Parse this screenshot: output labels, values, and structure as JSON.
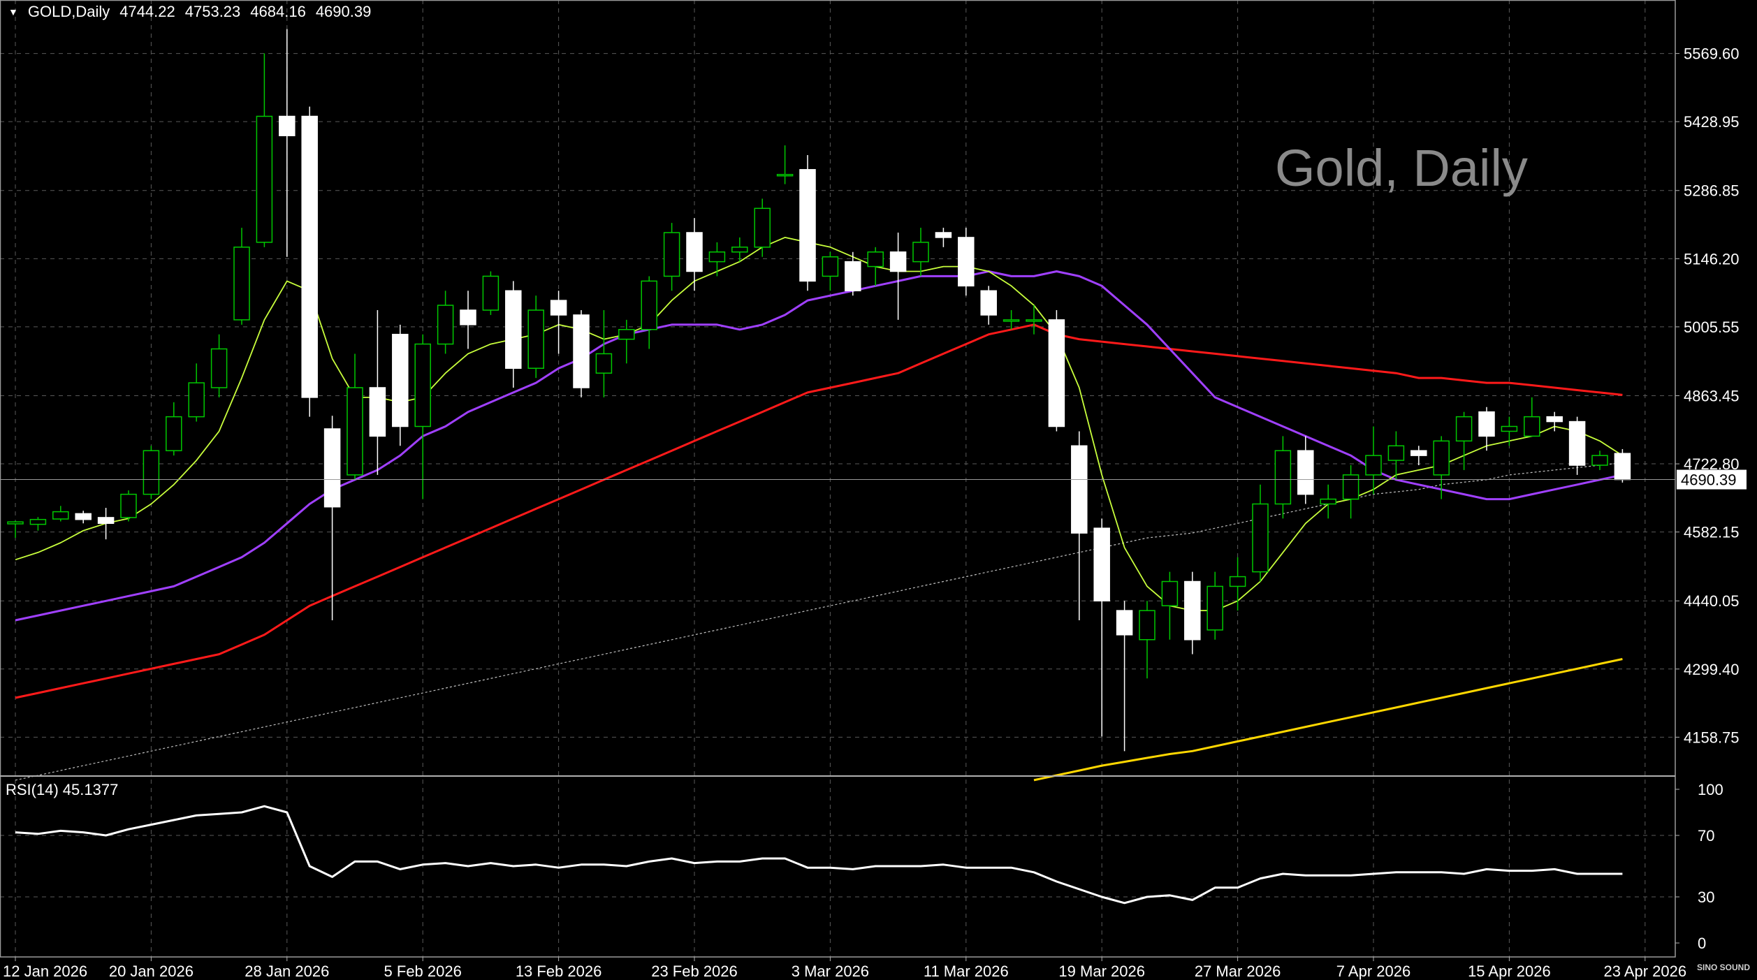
{
  "header": {
    "symbol": "GOLD,Daily",
    "open": "4744.22",
    "high": "4753.23",
    "low": "4684.16",
    "close": "4690.39"
  },
  "watermark": "Gold, Daily",
  "logo": "SINO SOUND",
  "rsi": {
    "label": "RSI(14)",
    "value": "45.1377"
  },
  "colors": {
    "background": "#000000",
    "grid": "#5a5a5a",
    "bull_candle": "#00c800",
    "bear_candle": "#ffffff",
    "ma_fast": "#c8ff3c",
    "ma_mid": "#a040ff",
    "ma_slow": "#ff1a1a",
    "ma_long": "#c0c0c0",
    "ma_yellow": "#ffd700",
    "rsi_line": "#ffffff"
  },
  "chart_data": [
    {
      "type": "candlestick",
      "y_ticks": [
        "5569.60",
        "5428.95",
        "5286.85",
        "5146.20",
        "5005.55",
        "4863.45",
        "4722.80",
        "4582.15",
        "4440.05",
        "4299.40",
        "4158.75"
      ],
      "ylim": [
        4080,
        5680
      ],
      "current_price_label": "4690.39",
      "x_tick_labels": [
        "12 Jan 2026",
        "20 Jan 2026",
        "28 Jan 2026",
        "5 Feb 2026",
        "13 Feb 2026",
        "23 Feb 2026",
        "3 Mar 2026",
        "11 Mar 2026",
        "19 Mar 2026",
        "27 Mar 2026",
        "7 Apr 2026",
        "15 Apr 2026",
        "23 Apr 2026"
      ],
      "x_tick_bars": [
        0,
        6,
        12,
        18,
        24,
        30,
        36,
        42,
        48,
        54,
        60,
        66,
        72
      ],
      "candles": [
        [
          4599,
          4603,
          4570,
          4605
        ],
        [
          4598,
          4608,
          4585,
          4613
        ],
        [
          4609,
          4624,
          4604,
          4636
        ],
        [
          4620,
          4608,
          4600,
          4626
        ],
        [
          4612,
          4600,
          4567,
          4632
        ],
        [
          4612,
          4660,
          4604,
          4668
        ],
        [
          4660,
          4750,
          4650,
          4760
        ],
        [
          4750,
          4820,
          4740,
          4850
        ],
        [
          4820,
          4890,
          4810,
          4930
        ],
        [
          4880,
          4960,
          4860,
          4990
        ],
        [
          5020,
          5170,
          5010,
          5210
        ],
        [
          5180,
          5440,
          5170,
          5570
        ],
        [
          5440,
          5400,
          5150,
          5620
        ],
        [
          5440,
          4860,
          4820,
          5460
        ],
        [
          4795,
          4634,
          4400,
          4822
        ],
        [
          4700,
          4880,
          4690,
          4950
        ],
        [
          4880,
          4780,
          4700,
          5040
        ],
        [
          4990,
          4800,
          4760,
          5010
        ],
        [
          4800,
          4970,
          4650,
          4990
        ],
        [
          4970,
          5050,
          4950,
          5080
        ],
        [
          5040,
          5010,
          4960,
          5080
        ],
        [
          5040,
          5110,
          5030,
          5120
        ],
        [
          5080,
          4920,
          4880,
          5100
        ],
        [
          4920,
          5040,
          4900,
          5070
        ],
        [
          5060,
          5030,
          4950,
          5080
        ],
        [
          5030,
          4880,
          4860,
          5040
        ],
        [
          4910,
          4950,
          4860,
          5040
        ],
        [
          4980,
          5000,
          4930,
          5020
        ],
        [
          5000,
          5100,
          4960,
          5110
        ],
        [
          5110,
          5200,
          5080,
          5220
        ],
        [
          5200,
          5120,
          5080,
          5230
        ],
        [
          5140,
          5160,
          5110,
          5180
        ],
        [
          5160,
          5170,
          5140,
          5190
        ],
        [
          5170,
          5250,
          5150,
          5270
        ],
        [
          5320,
          5320,
          5300,
          5380
        ],
        [
          5330,
          5100,
          5080,
          5360
        ],
        [
          5110,
          5150,
          5080,
          5160
        ],
        [
          5140,
          5080,
          5070,
          5160
        ],
        [
          5130,
          5160,
          5090,
          5170
        ],
        [
          5160,
          5120,
          5020,
          5200
        ],
        [
          5140,
          5180,
          5110,
          5210
        ],
        [
          5200,
          5190,
          5170,
          5210
        ],
        [
          5190,
          5090,
          5070,
          5210
        ],
        [
          5080,
          5030,
          5010,
          5090
        ],
        [
          5020,
          5020,
          5000,
          5040
        ],
        [
          5020,
          5020,
          4990,
          5050
        ],
        [
          5020,
          4800,
          4790,
          5040
        ],
        [
          4760,
          4580,
          4400,
          4790
        ],
        [
          4590,
          4440,
          4160,
          4610
        ],
        [
          4420,
          4370,
          4130,
          4440
        ],
        [
          4360,
          4420,
          4280,
          4440
        ],
        [
          4430,
          4480,
          4360,
          4500
        ],
        [
          4480,
          4360,
          4330,
          4500
        ],
        [
          4380,
          4470,
          4360,
          4500
        ],
        [
          4470,
          4490,
          4420,
          4530
        ],
        [
          4500,
          4640,
          4480,
          4680
        ],
        [
          4640,
          4750,
          4610,
          4780
        ],
        [
          4750,
          4660,
          4640,
          4780
        ],
        [
          4640,
          4650,
          4610,
          4680
        ],
        [
          4650,
          4700,
          4610,
          4720
        ],
        [
          4700,
          4740,
          4660,
          4800
        ],
        [
          4730,
          4760,
          4690,
          4790
        ],
        [
          4750,
          4740,
          4720,
          4760
        ],
        [
          4700,
          4770,
          4650,
          4780
        ],
        [
          4770,
          4820,
          4710,
          4830
        ],
        [
          4830,
          4780,
          4750,
          4840
        ],
        [
          4790,
          4800,
          4760,
          4820
        ],
        [
          4780,
          4820,
          4780,
          4860
        ],
        [
          4820,
          4810,
          4790,
          4830
        ],
        [
          4810,
          4720,
          4700,
          4820
        ],
        [
          4720,
          4740,
          4710,
          4750
        ],
        [
          4744.22,
          4690.39,
          4684.16,
          4753.23
        ]
      ],
      "ma_fast": [
        4525,
        4540,
        4560,
        4585,
        4600,
        4610,
        4640,
        4680,
        4730,
        4790,
        4900,
        5020,
        5100,
        5080,
        4940,
        4860,
        4860,
        4850,
        4860,
        4910,
        4950,
        4970,
        4980,
        4990,
        5010,
        5000,
        4980,
        4990,
        5010,
        5060,
        5100,
        5120,
        5140,
        5170,
        5190,
        5180,
        5170,
        5150,
        5130,
        5120,
        5120,
        5130,
        5130,
        5120,
        5090,
        5050,
        4990,
        4880,
        4700,
        4550,
        4470,
        4430,
        4420,
        4420,
        4440,
        4480,
        4540,
        4600,
        4640,
        4650,
        4670,
        4700,
        4710,
        4720,
        4740,
        4760,
        4770,
        4780,
        4800,
        4790,
        4770,
        4740
      ],
      "ma_mid": [
        4400,
        4410,
        4420,
        4430,
        4440,
        4450,
        4460,
        4470,
        4490,
        4510,
        4530,
        4560,
        4600,
        4640,
        4670,
        4690,
        4710,
        4740,
        4780,
        4800,
        4830,
        4850,
        4870,
        4890,
        4920,
        4940,
        4970,
        4990,
        5000,
        5010,
        5010,
        5010,
        5000,
        5010,
        5030,
        5060,
        5070,
        5080,
        5090,
        5100,
        5110,
        5110,
        5110,
        5120,
        5110,
        5110,
        5120,
        5110,
        5090,
        5050,
        5010,
        4960,
        4910,
        4860,
        4840,
        4820,
        4800,
        4780,
        4760,
        4740,
        4710,
        4690,
        4680,
        4670,
        4660,
        4650,
        4650,
        4660,
        4670,
        4680,
        4690,
        4700
      ],
      "ma_slow": [
        4240,
        4250,
        4260,
        4270,
        4280,
        4290,
        4300,
        4310,
        4320,
        4330,
        4350,
        4370,
        4400,
        4430,
        4450,
        4470,
        4490,
        4510,
        4530,
        4550,
        4570,
        4590,
        4610,
        4630,
        4650,
        4670,
        4690,
        4710,
        4730,
        4750,
        4770,
        4790,
        4810,
        4830,
        4850,
        4870,
        4880,
        4890,
        4900,
        4910,
        4930,
        4950,
        4970,
        4990,
        5000,
        5010,
        4990,
        4980,
        4975,
        4970,
        4965,
        4960,
        4955,
        4950,
        4945,
        4940,
        4935,
        4930,
        4925,
        4920,
        4915,
        4910,
        4900,
        4900,
        4895,
        4890,
        4890,
        4885,
        4880,
        4875,
        4870,
        4865
      ],
      "ma_long": [
        4070,
        4080,
        4090,
        4100,
        4110,
        4120,
        4130,
        4140,
        4150,
        4160,
        4170,
        4180,
        4190,
        4200,
        4210,
        4220,
        4230,
        4240,
        4250,
        4260,
        4270,
        4280,
        4290,
        4300,
        4310,
        4320,
        4330,
        4340,
        4350,
        4360,
        4370,
        4380,
        4390,
        4400,
        4410,
        4420,
        4430,
        4440,
        4450,
        4460,
        4470,
        4480,
        4490,
        4500,
        4510,
        4520,
        4530,
        4540,
        4550,
        4560,
        4570,
        4575,
        4580,
        4590,
        4600,
        4610,
        4620,
        4630,
        4640,
        4650,
        4660,
        4665,
        4670,
        4680,
        4685,
        4690,
        4700,
        4705,
        4710,
        4715,
        4720,
        4725
      ],
      "ma_yellow_start_index": 45,
      "ma_yellow": [
        4070,
        4080,
        4090,
        4100,
        4108,
        4116,
        4124,
        4130,
        4140,
        4150,
        4160,
        4170,
        4180,
        4190,
        4200,
        4210,
        4220,
        4230,
        4240,
        4250,
        4260,
        4270,
        4280,
        4290,
        4300,
        4310,
        4320
      ]
    },
    {
      "type": "line",
      "title": "RSI(14) 45.1377",
      "y_ticks": [
        "100",
        "70",
        "30",
        "0"
      ],
      "ylim": [
        0,
        100
      ],
      "series": [
        {
          "name": "RSI(14)",
          "values": [
            72,
            71,
            73,
            72,
            70,
            74,
            77,
            80,
            83,
            84,
            85,
            89,
            85,
            50,
            43,
            53,
            53,
            48,
            51,
            52,
            50,
            52,
            50,
            51,
            49,
            51,
            51,
            50,
            53,
            55,
            52,
            53,
            53,
            55,
            55,
            49,
            49,
            48,
            50,
            50,
            50,
            51,
            49,
            49,
            49,
            46,
            40,
            35,
            30,
            26,
            30,
            31,
            28,
            36,
            36,
            42,
            45,
            44,
            44,
            44,
            45,
            46,
            46,
            46,
            45,
            48,
            47,
            47,
            48,
            45,
            45,
            45
          ]
        }
      ],
      "final_value": 45.1377
    }
  ]
}
